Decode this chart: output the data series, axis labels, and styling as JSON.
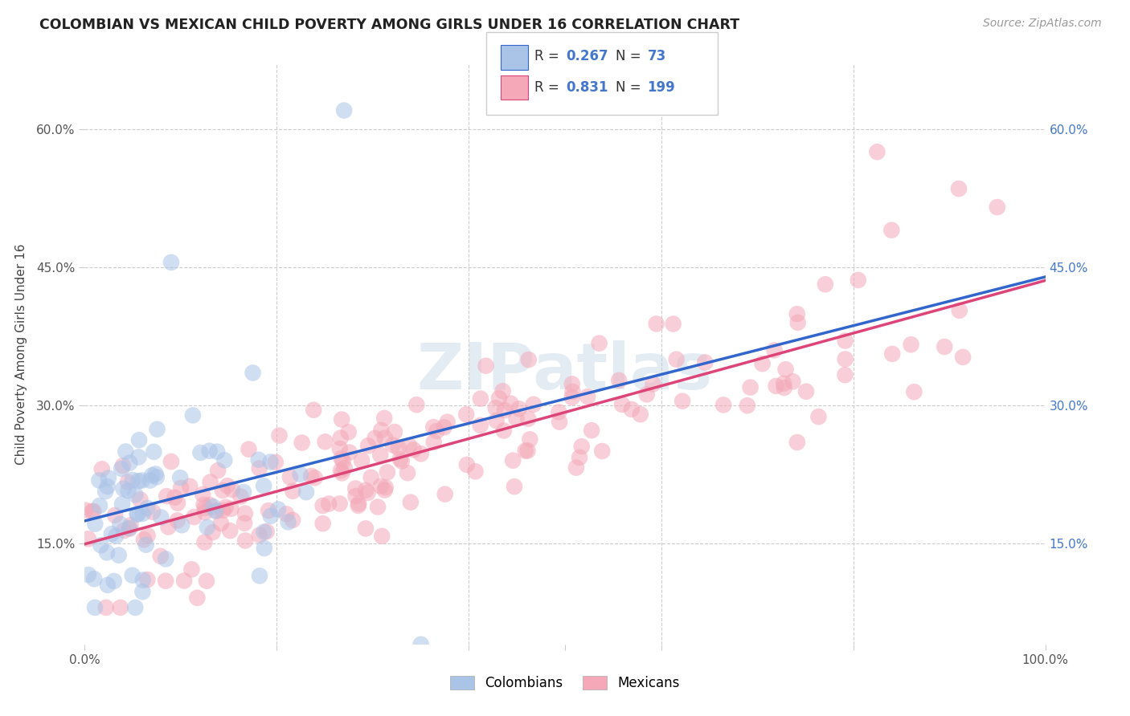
{
  "title": "COLOMBIAN VS MEXICAN CHILD POVERTY AMONG GIRLS UNDER 16 CORRELATION CHART",
  "source": "Source: ZipAtlas.com",
  "ylabel": "Child Poverty Among Girls Under 16",
  "watermark": "ZIPatlas",
  "colombian_R": 0.267,
  "colombian_N": 73,
  "mexican_R": 0.831,
  "mexican_N": 199,
  "colombian_color": "#aac4e8",
  "mexican_color": "#f4a8b8",
  "colombian_line_color": "#3366cc",
  "mexican_line_color": "#dd4477",
  "dashed_line_color": "#99bbdd",
  "background_color": "#ffffff",
  "grid_color": "#cccccc",
  "title_color": "#222222",
  "source_color": "#999999",
  "tick_color_left": "#555555",
  "tick_color_right": "#4477cc",
  "xmin": 0.0,
  "xmax": 1.0,
  "ymin": 0.04,
  "ymax": 0.67,
  "yticks": [
    0.15,
    0.3,
    0.45,
    0.6
  ],
  "ytick_labels": [
    "15.0%",
    "30.0%",
    "45.0%",
    "60.0%"
  ],
  "xticks": [
    0.0,
    0.2,
    0.4,
    0.5,
    0.6,
    0.8,
    1.0
  ],
  "xtick_labels": [
    "0.0%",
    "",
    "",
    "",
    "",
    "",
    "100.0%"
  ]
}
